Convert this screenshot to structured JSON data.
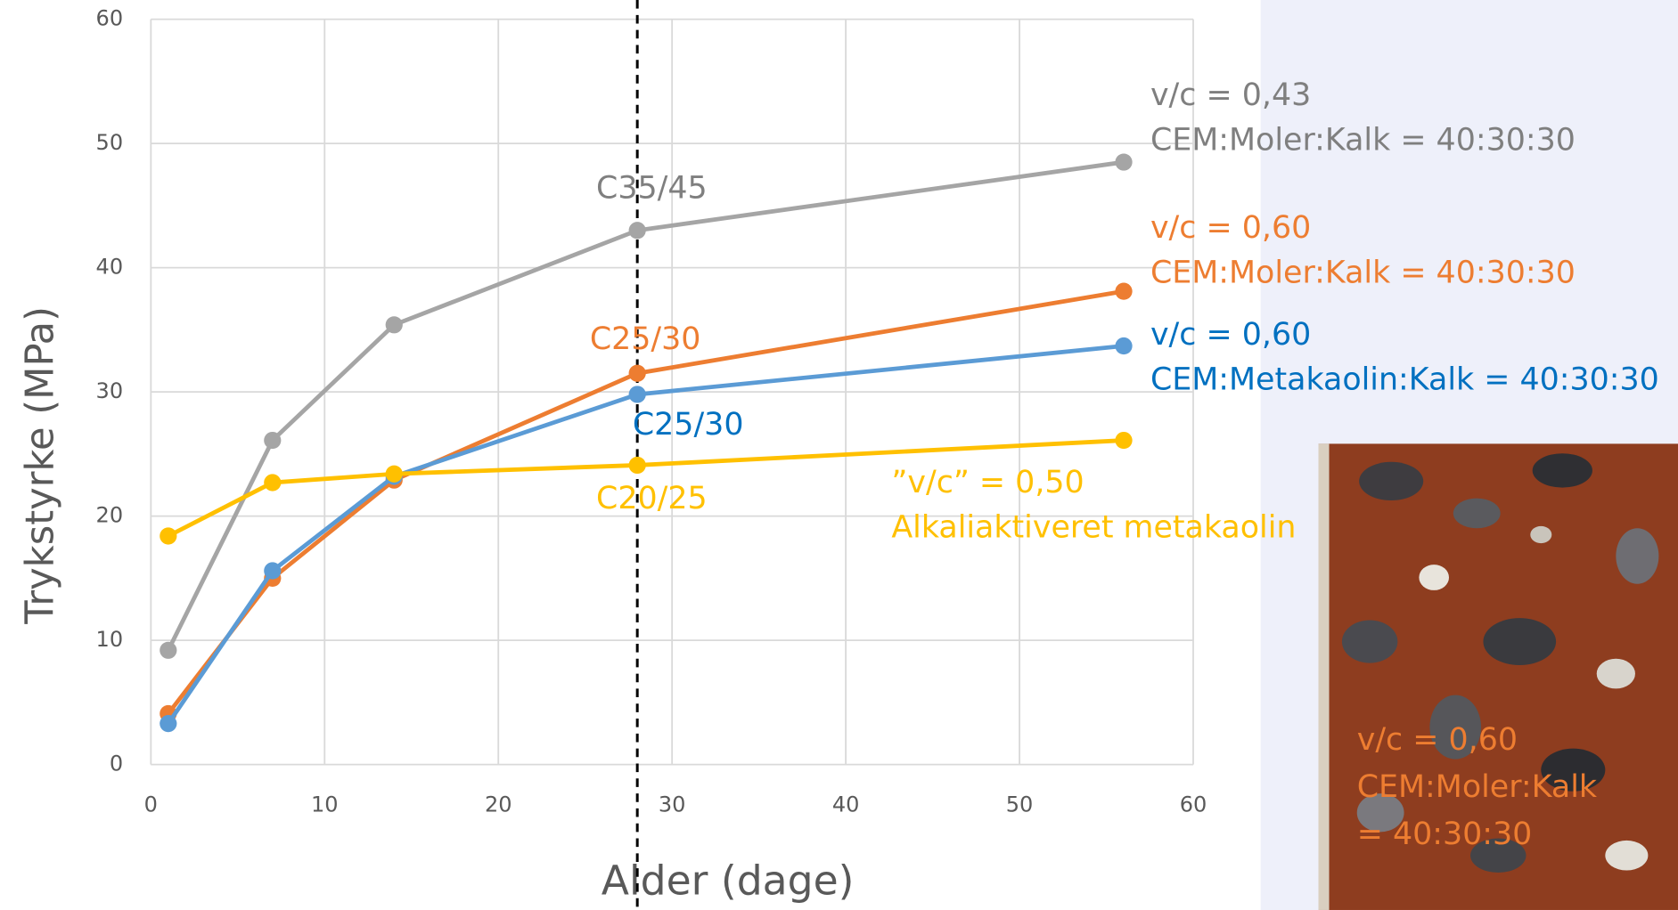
{
  "chart_data": {
    "type": "line",
    "xlabel": "Alder (dage)",
    "ylabel": "Trykstyrke (MPa)",
    "x": [
      1,
      7,
      14,
      28,
      56
    ],
    "series": [
      {
        "name": [
          "v/c = 0,43",
          "CEM:Moler:Kalk = 40:30:30"
        ],
        "color": "#a5a5a5",
        "label_color": "#7f7f7f",
        "values": [
          9.2,
          26.1,
          35.4,
          43.0,
          48.5
        ]
      },
      {
        "name": [
          "v/c = 0,60",
          "CEM:Moler:Kalk = 40:30:30"
        ],
        "color": "#ed7d31",
        "label_color": "#ed7d31",
        "values": [
          4.1,
          15.0,
          22.9,
          31.5,
          38.1
        ]
      },
      {
        "name": [
          "v/c = 0,60",
          "CEM:Metakaolin:Kalk = 40:30:30"
        ],
        "color": "#5b9bd5",
        "label_color": "#0070c0",
        "values": [
          3.3,
          15.6,
          23.2,
          29.8,
          33.7
        ]
      },
      {
        "name": [
          "”v/c” = 0,50",
          "Alkaliaktiveret metakaolin"
        ],
        "color": "#ffc000",
        "label_color": "#ffc000",
        "values": [
          18.4,
          22.7,
          23.4,
          24.1,
          26.1
        ]
      }
    ],
    "annotations": [
      {
        "text": "C35/45",
        "color": "#7f7f7f"
      },
      {
        "text": "C25/30",
        "color": "#ed7d31"
      },
      {
        "text": "C25/30",
        "color": "#0070c0"
      },
      {
        "text": "C20/25",
        "color": "#ffc000"
      }
    ],
    "reference_x": 28,
    "photo_label": [
      "v/c = 0,60",
      "CEM:Moler:Kalk",
      "= 40:30:30"
    ],
    "photo_label_color": "#ed7d31",
    "xlim": [
      0,
      60
    ],
    "xticks": [
      0,
      10,
      20,
      30,
      40,
      50,
      60
    ],
    "ylim": [
      0,
      60
    ],
    "yticks": [
      0,
      10,
      20,
      30,
      40,
      50,
      60
    ],
    "grid": true
  }
}
